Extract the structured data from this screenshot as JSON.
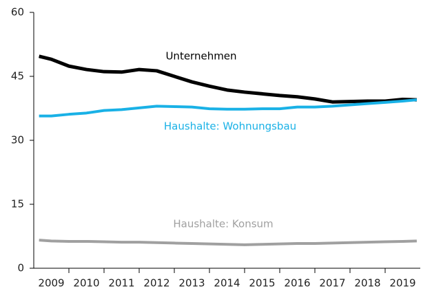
{
  "chart_data": {
    "type": "line",
    "x": [
      2009.15,
      2009.5,
      2010,
      2010.5,
      2011,
      2011.5,
      2012,
      2012.5,
      2013,
      2013.5,
      2014,
      2014.5,
      2015,
      2015.5,
      2016,
      2016.5,
      2017,
      2017.5,
      2018,
      2018.5,
      2019,
      2019.5,
      2019.9
    ],
    "series": [
      {
        "name": "Unternehmen",
        "color": "#000000",
        "values": [
          49.7,
          49.0,
          47.4,
          46.6,
          46.1,
          46.0,
          46.6,
          46.3,
          45.0,
          43.7,
          42.7,
          41.8,
          41.3,
          40.9,
          40.5,
          40.2,
          39.7,
          39.0,
          39.1,
          39.2,
          39.2,
          39.6,
          39.5
        ]
      },
      {
        "name": "Haushalte: Wohnungsbau",
        "color": "#19b1e6",
        "values": [
          35.7,
          35.7,
          36.1,
          36.4,
          37.0,
          37.2,
          37.6,
          38.0,
          37.9,
          37.8,
          37.4,
          37.3,
          37.3,
          37.4,
          37.4,
          37.8,
          37.8,
          38.0,
          38.3,
          38.6,
          38.9,
          39.2,
          39.5
        ]
      },
      {
        "name": "Haushalte: Konsum",
        "color": "#a0a0a0",
        "values": [
          6.6,
          6.4,
          6.3,
          6.3,
          6.2,
          6.1,
          6.1,
          6.0,
          5.9,
          5.8,
          5.7,
          5.6,
          5.5,
          5.6,
          5.7,
          5.8,
          5.8,
          5.9,
          6.0,
          6.1,
          6.2,
          6.3,
          6.4
        ]
      }
    ],
    "xlim": [
      2009,
      2020
    ],
    "xticks": [
      {
        "value": 2009.5,
        "label": "2009"
      },
      {
        "value": 2010.5,
        "label": "2010"
      },
      {
        "value": 2011.5,
        "label": "2011"
      },
      {
        "value": 2012.5,
        "label": "2012"
      },
      {
        "value": 2013.5,
        "label": "2013"
      },
      {
        "value": 2014.5,
        "label": "2014"
      },
      {
        "value": 2015.5,
        "label": "2015"
      },
      {
        "value": 2016.5,
        "label": "2016"
      },
      {
        "value": 2017.5,
        "label": "2017"
      },
      {
        "value": 2018.5,
        "label": "2018"
      },
      {
        "value": 2019.5,
        "label": "2019"
      }
    ],
    "xtick_marks": [
      2010,
      2011,
      2012,
      2013,
      2014,
      2015,
      2016,
      2017,
      2018,
      2019
    ],
    "ylim": [
      0,
      60
    ],
    "yticks": [
      0,
      15,
      30,
      45,
      60
    ],
    "grid": false
  }
}
